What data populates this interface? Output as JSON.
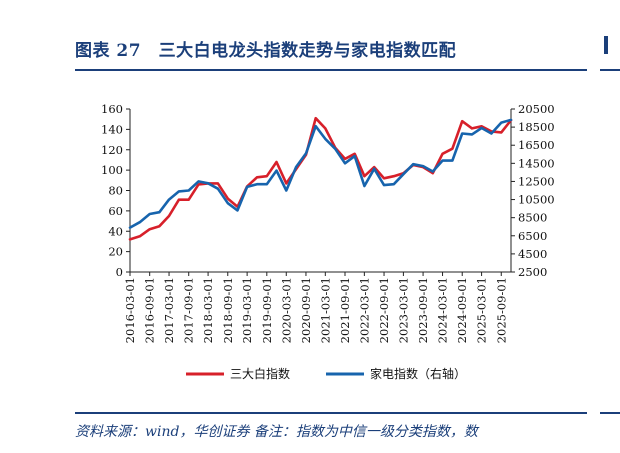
{
  "header": {
    "title": "图表 27　三大白电龙头指数走势与家电指数匹配"
  },
  "footer": {
    "source": "资料来源：wind，华创证券 备注：指数为中信一级分类指数，数"
  },
  "colors": {
    "accent": "#1b3f7a",
    "series_red": "#d7202a",
    "series_blue": "#1764ad"
  },
  "chart_data": {
    "type": "line",
    "x": [
      "2016-03-01",
      "2016-06-01",
      "2016-09-01",
      "2016-12-01",
      "2017-03-01",
      "2017-06-01",
      "2017-09-01",
      "2017-12-01",
      "2018-03-01",
      "2018-06-01",
      "2018-09-01",
      "2018-12-01",
      "2019-03-01",
      "2019-06-01",
      "2019-09-01",
      "2019-12-01",
      "2020-03-01",
      "2020-06-01",
      "2020-09-01",
      "2020-12-01",
      "2021-03-01",
      "2021-06-01",
      "2021-09-01",
      "2021-12-01",
      "2022-03-01",
      "2022-06-01",
      "2022-09-01",
      "2022-12-01",
      "2023-03-01",
      "2023-06-01",
      "2023-09-01",
      "2023-12-01",
      "2024-03-01",
      "2024-06-01",
      "2024-09-01",
      "2024-12-01",
      "2025-03-01",
      "2025-06-01",
      "2025-09-01",
      "2025-12-01"
    ],
    "xticks": [
      "2016-03-01",
      "2016-09-01",
      "2017-03-01",
      "2017-09-01",
      "2018-03-01",
      "2018-09-01",
      "2019-03-01",
      "2019-09-01",
      "2020-03-01",
      "2020-09-01",
      "2021-03-01",
      "2021-09-01",
      "2022-03-01",
      "2022-09-01",
      "2023-03-01",
      "2023-09-01",
      "2024-03-01",
      "2024-09-01",
      "2025-03-01",
      "2025-09-01"
    ],
    "yticks_left": [
      "0",
      "20",
      "40",
      "60",
      "80",
      "100",
      "120",
      "140",
      "160"
    ],
    "yticks_right": [
      "2500",
      "4500",
      "6500",
      "8500",
      "10500",
      "12500",
      "14500",
      "16500",
      "18500",
      "20500"
    ],
    "ylim": [
      0,
      160
    ],
    "ylim_right": [
      2500,
      20500
    ],
    "legend_position": "bottom",
    "grid": false,
    "series": [
      {
        "name": "三大白指数",
        "axis": "left",
        "values": [
          32,
          35,
          42,
          45,
          55,
          71,
          71,
          86,
          87,
          87,
          72,
          64,
          84,
          93,
          94,
          108,
          87,
          101,
          115,
          151,
          141,
          122,
          111,
          116,
          94,
          103,
          92,
          94,
          97,
          105,
          103,
          97,
          116,
          121,
          148,
          141,
          143,
          138,
          137,
          149
        ]
      },
      {
        "name": "家电指数（右轴）",
        "axis": "right",
        "values": [
          7400,
          8000,
          8900,
          9100,
          10500,
          11400,
          11500,
          12500,
          12300,
          11700,
          10100,
          9300,
          11900,
          12200,
          12200,
          13700,
          11500,
          14100,
          15600,
          18600,
          17200,
          16100,
          14500,
          15300,
          12000,
          13900,
          12100,
          12200,
          13300,
          14400,
          14200,
          13600,
          14800,
          14800,
          17800,
          17700,
          18400,
          17800,
          19000,
          19300
        ]
      }
    ]
  }
}
